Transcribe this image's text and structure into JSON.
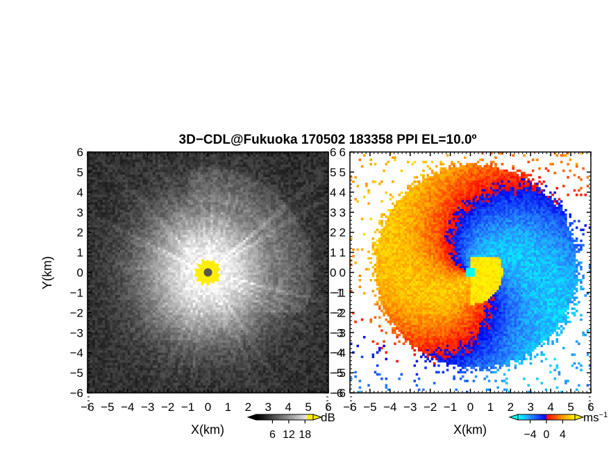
{
  "title": "3D−CDL@Fukuoka 170502 183358 PPI EL=10.0º",
  "chart_data": [
    {
      "type": "heatmap",
      "panel": "reflectivity",
      "xlabel": "X(km)",
      "ylabel": "Y(km)",
      "xlim": [
        -6,
        6
      ],
      "ylim": [
        -6,
        6
      ],
      "xticks": [
        "−6",
        "−5",
        "−4",
        "−3",
        "−2",
        "−1",
        "0",
        "1",
        "2",
        "3",
        "4",
        "5",
        "6"
      ],
      "yticks": [
        "−6",
        "−5",
        "−4",
        "−3",
        "−2",
        "−1",
        "0",
        "1",
        "2",
        "3",
        "4",
        "5",
        "6"
      ],
      "colorbar": {
        "unit": "dB",
        "ticks": [
          "6",
          "12",
          "18"
        ],
        "tick_values": [
          6,
          12,
          18
        ],
        "range": [
          0,
          21
        ],
        "colors": [
          "#000000",
          "#ffffff",
          "#ffee00"
        ]
      },
      "center_marker_color": "#555555",
      "core_color": "#ffee00"
    },
    {
      "type": "heatmap",
      "panel": "doppler_velocity",
      "xlabel": "X(km)",
      "ylabel": "",
      "xlim": [
        -6,
        6
      ],
      "ylim": [
        -6,
        6
      ],
      "xticks": [
        "−6",
        "−5",
        "−4",
        "−3",
        "−2",
        "−1",
        "0",
        "1",
        "2",
        "3",
        "4",
        "5",
        "6"
      ],
      "yticks": [
        "−6",
        "−5",
        "−4",
        "−3",
        "−2",
        "−1",
        "0",
        "1",
        "2",
        "3",
        "4",
        "5",
        "6"
      ],
      "colorbar": {
        "unit": "ms",
        "unit_exponent": "−1",
        "ticks": [
          "−4",
          "0",
          "4"
        ],
        "tick_values": [
          -4,
          0,
          4
        ],
        "range": [
          -7,
          7
        ],
        "colors": [
          "#00ffff",
          "#0000ff",
          "#ff0000",
          "#ffee00"
        ]
      }
    }
  ]
}
